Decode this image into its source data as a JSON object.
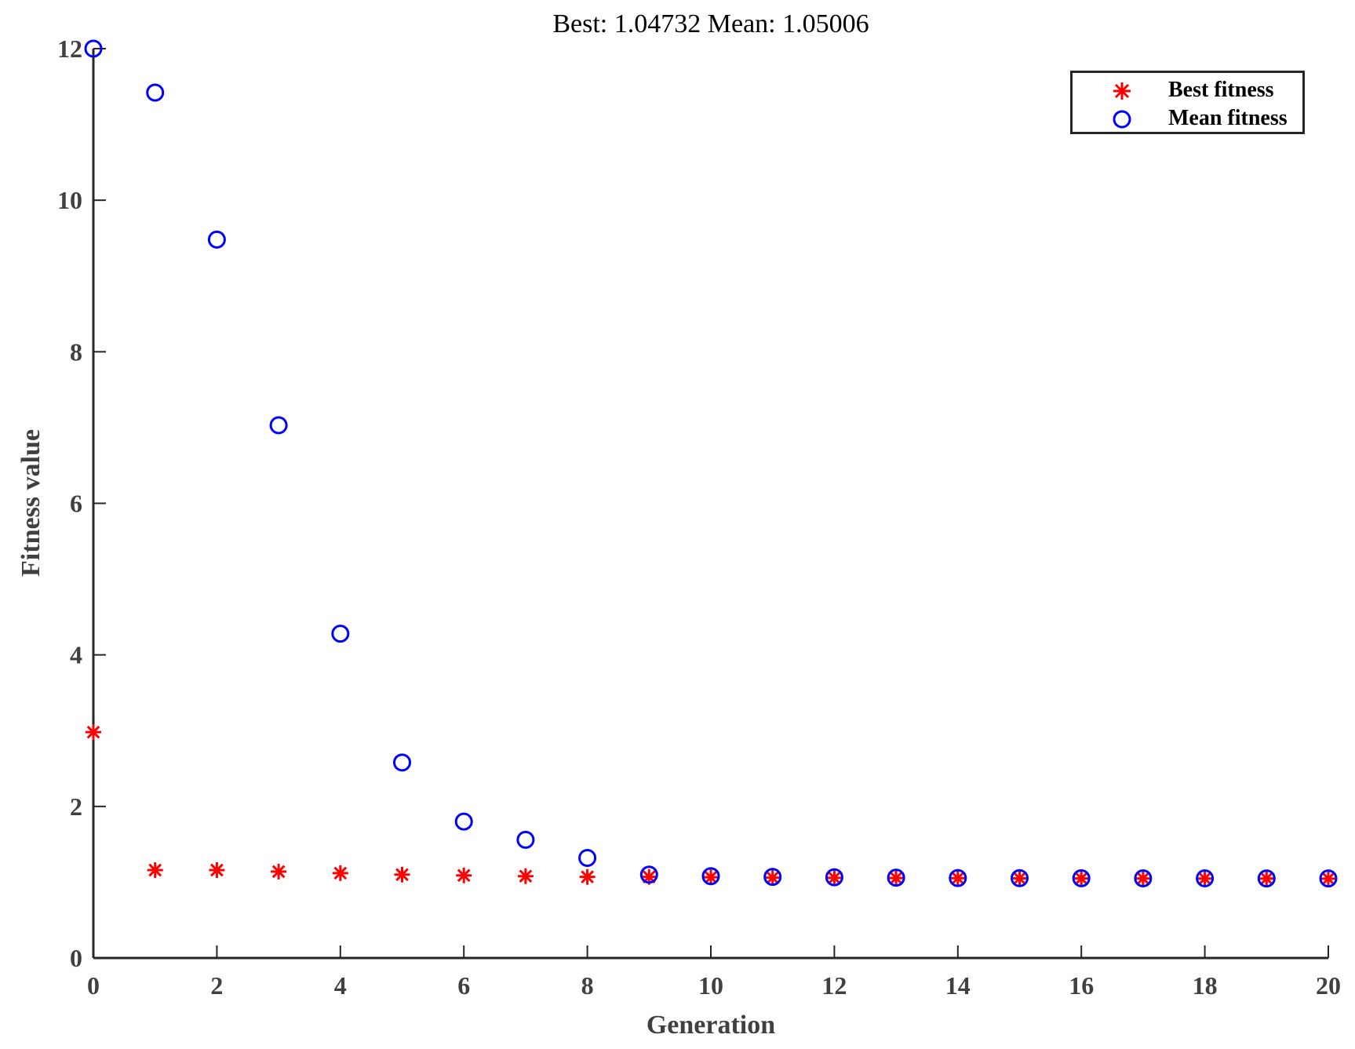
{
  "title": "Best: 1.04732 Mean: 1.05006",
  "colors": {
    "best": "#ff0000",
    "mean": "#0000ff",
    "axis": "#262626",
    "text": "#404040"
  },
  "legend": {
    "items": [
      {
        "label": "Best fitness",
        "marker": "asterisk",
        "color": "#ff0000"
      },
      {
        "label": "Mean fitness",
        "marker": "circle",
        "color": "#0000ff"
      }
    ]
  },
  "chart_data": {
    "type": "scatter",
    "title": "Best: 1.04732 Mean: 1.05006",
    "xlabel": "Generation",
    "ylabel": "Fitness value",
    "xlim": [
      0,
      20
    ],
    "ylim": [
      0,
      12
    ],
    "xticks": [
      0,
      2,
      4,
      6,
      8,
      10,
      12,
      14,
      16,
      18,
      20
    ],
    "yticks": [
      0,
      2,
      4,
      6,
      8,
      10,
      12
    ],
    "grid": false,
    "legend_position": "upper right",
    "x": [
      0,
      1,
      2,
      3,
      4,
      5,
      6,
      7,
      8,
      9,
      10,
      11,
      12,
      13,
      14,
      15,
      16,
      17,
      18,
      19,
      20
    ],
    "series": [
      {
        "name": "Best fitness",
        "marker": "asterisk",
        "color": "#ff0000",
        "values": [
          2.98,
          1.16,
          1.16,
          1.14,
          1.12,
          1.1,
          1.09,
          1.08,
          1.07,
          1.07,
          1.065,
          1.06,
          1.057,
          1.055,
          1.053,
          1.051,
          1.05,
          1.049,
          1.048,
          1.048,
          1.047
        ]
      },
      {
        "name": "Mean fitness",
        "marker": "circle",
        "color": "#0000ff",
        "values": [
          12.0,
          11.42,
          9.48,
          7.03,
          4.28,
          2.58,
          1.8,
          1.56,
          1.32,
          1.1,
          1.08,
          1.07,
          1.065,
          1.06,
          1.055,
          1.053,
          1.052,
          1.051,
          1.051,
          1.05,
          1.05
        ]
      }
    ]
  }
}
